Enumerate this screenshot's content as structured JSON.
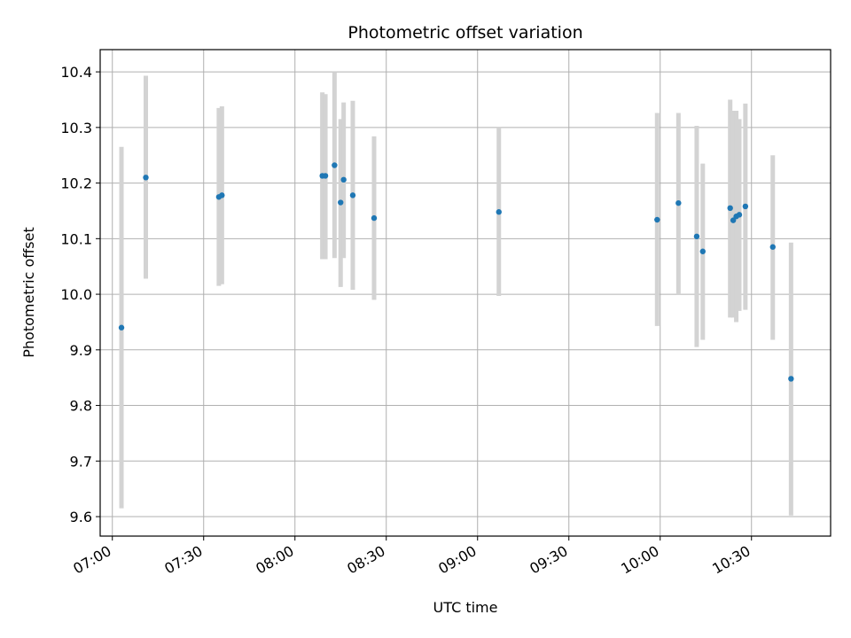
{
  "chart_data": {
    "type": "scatter",
    "title": "Photometric offset variation",
    "xlabel": "UTC time",
    "ylabel": "Photometric offset",
    "grid": true,
    "legend": "none",
    "xlim": [
      "06:56",
      "10:56"
    ],
    "ylim": [
      9.565,
      10.44
    ],
    "x_ticks": [
      "07:00",
      "07:30",
      "08:00",
      "08:30",
      "09:00",
      "09:30",
      "10:00",
      "10:30"
    ],
    "y_ticks": [
      9.6,
      9.7,
      9.8,
      9.9,
      10.0,
      10.1,
      10.2,
      10.3,
      10.4
    ],
    "y_tick_labels": [
      "9.6",
      "9.7",
      "9.8",
      "9.9",
      "10.0",
      "10.1",
      "10.2",
      "10.3",
      "10.4"
    ],
    "colors": {
      "points": "#1f77b4",
      "error_bars": "#d3d3d3",
      "grid": "#b0b0b0"
    },
    "series": [
      {
        "points": [
          {
            "x": "07:03",
            "y": 9.94,
            "ylow": 9.615,
            "yhigh": 10.265
          },
          {
            "x": "07:11",
            "y": 10.21,
            "ylow": 10.028,
            "yhigh": 10.393
          },
          {
            "x": "07:35",
            "y": 10.175,
            "ylow": 10.015,
            "yhigh": 10.335
          },
          {
            "x": "07:36",
            "y": 10.178,
            "ylow": 10.018,
            "yhigh": 10.338
          },
          {
            "x": "08:09",
            "y": 10.213,
            "ylow": 10.063,
            "yhigh": 10.363
          },
          {
            "x": "08:10",
            "y": 10.213,
            "ylow": 10.063,
            "yhigh": 10.36
          },
          {
            "x": "08:13",
            "y": 10.232,
            "ylow": 10.065,
            "yhigh": 10.4
          },
          {
            "x": "08:15",
            "y": 10.165,
            "ylow": 10.013,
            "yhigh": 10.315
          },
          {
            "x": "08:16",
            "y": 10.206,
            "ylow": 10.065,
            "yhigh": 10.345
          },
          {
            "x": "08:19",
            "y": 10.178,
            "ylow": 10.008,
            "yhigh": 10.348
          },
          {
            "x": "08:26",
            "y": 10.137,
            "ylow": 9.99,
            "yhigh": 10.284
          },
          {
            "x": "09:07",
            "y": 10.148,
            "ylow": 9.997,
            "yhigh": 10.3
          },
          {
            "x": "09:59",
            "y": 10.134,
            "ylow": 9.943,
            "yhigh": 10.326
          },
          {
            "x": "10:06",
            "y": 10.164,
            "ylow": 10.0,
            "yhigh": 10.326
          },
          {
            "x": "10:12",
            "y": 10.104,
            "ylow": 9.905,
            "yhigh": 10.303
          },
          {
            "x": "10:14",
            "y": 10.077,
            "ylow": 9.918,
            "yhigh": 10.235
          },
          {
            "x": "10:23",
            "y": 10.155,
            "ylow": 9.958,
            "yhigh": 10.35
          },
          {
            "x": "10:24",
            "y": 10.133,
            "ylow": 9.958,
            "yhigh": 10.33
          },
          {
            "x": "10:25",
            "y": 10.14,
            "ylow": 9.95,
            "yhigh": 10.33
          },
          {
            "x": "10:26",
            "y": 10.143,
            "ylow": 9.97,
            "yhigh": 10.315
          },
          {
            "x": "10:28",
            "y": 10.158,
            "ylow": 9.972,
            "yhigh": 10.343
          },
          {
            "x": "10:37",
            "y": 10.085,
            "ylow": 9.918,
            "yhigh": 10.25
          },
          {
            "x": "10:43",
            "y": 9.848,
            "ylow": 9.602,
            "yhigh": 10.093
          }
        ]
      }
    ]
  }
}
